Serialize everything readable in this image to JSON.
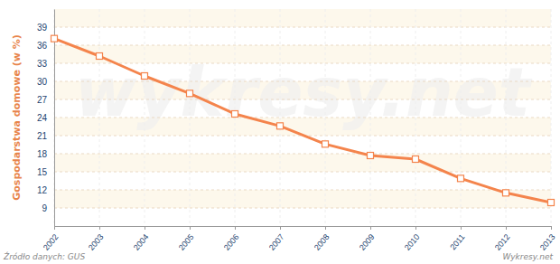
{
  "chart_data": {
    "type": "line",
    "y_label": "Gospodarstwa domowe (w %)",
    "source": "Źródło danych: GUS",
    "credit": "Wykresy.net",
    "watermark": "wykresy.net",
    "x": [
      2002,
      2003,
      2004,
      2005,
      2006,
      2007,
      2008,
      2009,
      2010,
      2011,
      2012,
      2013
    ],
    "values": [
      37.1,
      34.2,
      30.9,
      28.0,
      24.6,
      22.6,
      19.6,
      17.7,
      17.1,
      13.9,
      11.5,
      9.9
    ],
    "color": "#f4844c",
    "marker": "square",
    "xlim": [
      2002,
      2013
    ],
    "xticks": [
      2002,
      2003,
      2004,
      2005,
      2006,
      2007,
      2008,
      2009,
      2010,
      2011,
      2012,
      2013
    ],
    "ylim": [
      6,
      42
    ],
    "yticks": [
      9,
      12,
      15,
      18,
      21,
      24,
      27,
      30,
      33,
      36,
      39
    ],
    "grid": true
  }
}
